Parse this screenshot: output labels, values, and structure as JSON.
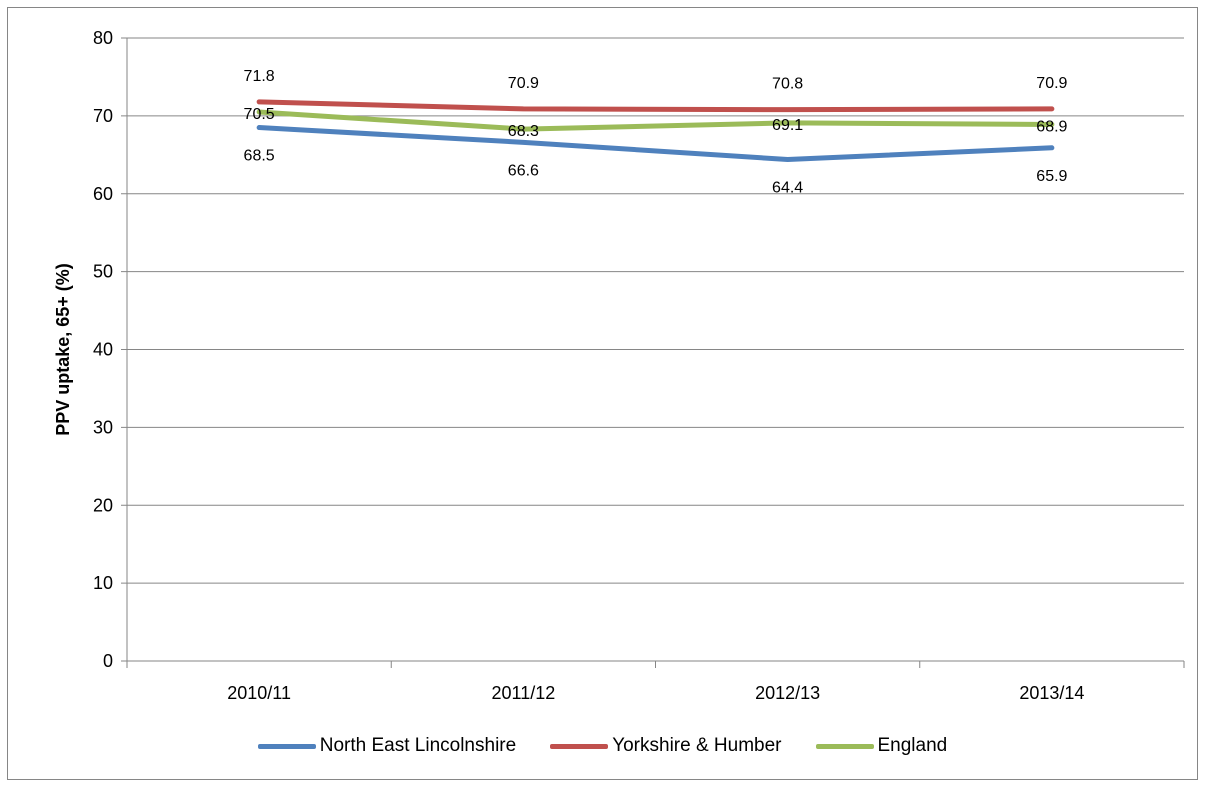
{
  "chart_data": {
    "type": "line",
    "title": "",
    "xlabel": "",
    "ylabel": "PPV uptake, 65+ (%)",
    "ylim": [
      0,
      80
    ],
    "yticks": [
      0,
      10,
      20,
      30,
      40,
      50,
      60,
      70,
      80
    ],
    "categories": [
      "2010/11",
      "2011/12",
      "2012/13",
      "2013/14"
    ],
    "grid": true,
    "legend": "bottom",
    "series": [
      {
        "name": "North East Lincolnshire",
        "color": "#4f81bd",
        "values": [
          68.5,
          66.6,
          64.4,
          65.9
        ],
        "labels": [
          "68.5",
          "66.6",
          "64.4",
          "65.9"
        ]
      },
      {
        "name": "Yorkshire & Humber",
        "color": "#c0504d",
        "values": [
          71.8,
          70.9,
          70.8,
          70.9
        ],
        "labels": [
          "71.8",
          "70.9",
          "70.8",
          "70.9"
        ]
      },
      {
        "name": "England",
        "color": "#9bbb59",
        "values": [
          70.5,
          68.3,
          69.1,
          68.9
        ],
        "labels": [
          "70.5",
          "68.3",
          "69.1",
          "68.9"
        ]
      }
    ]
  }
}
